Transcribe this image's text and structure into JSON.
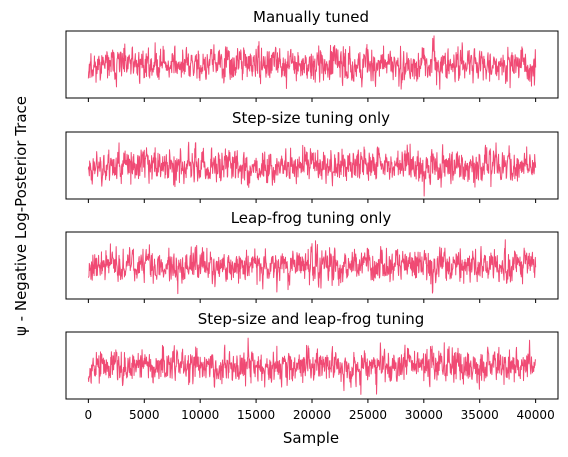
{
  "chart_data": {
    "type": "line",
    "ylabel": "ψ - Negative Log-Posterior Trace",
    "xlabel": "Sample",
    "x_ticks": [
      0,
      5000,
      10000,
      15000,
      20000,
      25000,
      30000,
      35000,
      40000
    ],
    "xlim": [
      -2000,
      42000
    ],
    "series_color": "#f04a74",
    "panels": [
      {
        "title": "Manually tuned",
        "n_samples": 40000,
        "ylim": [
          -4.5,
          4.5
        ],
        "spread": 1.3,
        "seed": 11
      },
      {
        "title": "Step-size tuning only",
        "n_samples": 40000,
        "ylim": [
          -4.5,
          4.5
        ],
        "spread": 1.3,
        "seed": 23
      },
      {
        "title": "Leap-frog tuning only",
        "n_samples": 40000,
        "ylim": [
          -4.5,
          4.5
        ],
        "spread": 1.3,
        "seed": 37
      },
      {
        "title": "Step-size and leap-frog tuning",
        "n_samples": 40000,
        "ylim": [
          -4.5,
          4.5
        ],
        "spread": 1.3,
        "seed": 53
      }
    ]
  }
}
